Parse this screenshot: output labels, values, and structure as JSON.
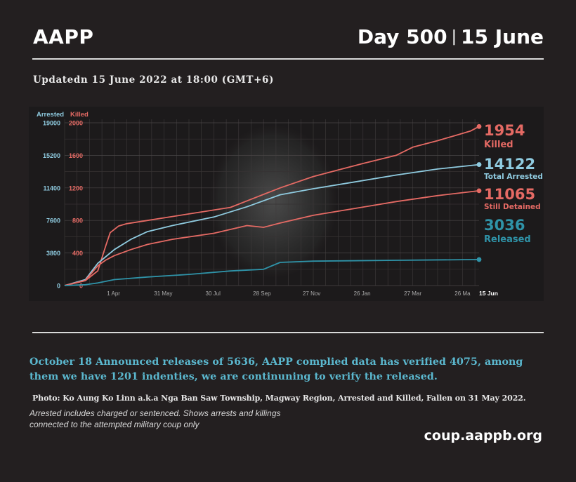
{
  "header": {
    "brand": "AAPP",
    "day_label": "Day 500",
    "separator": "|",
    "date_label": "15 June"
  },
  "updated": "Updatedn 15 June 2022 at 18:00 (GMT+6)",
  "chart_data": {
    "type": "line",
    "left_axis": {
      "label": "Arrested",
      "ticks": [
        0,
        3800,
        7600,
        11400,
        15200,
        19000
      ],
      "ylim": [
        0,
        19000
      ],
      "color": "#8fcbe0"
    },
    "right_axis": {
      "label": "Killed",
      "ticks": [
        0,
        400,
        800,
        1200,
        1600,
        2000
      ],
      "ylim": [
        0,
        2000
      ],
      "color": "#e56a64"
    },
    "x_ticks": [
      "1 Apr",
      "31 May",
      "30 Jul",
      "28 Sep",
      "27 Nov",
      "26 Jan",
      "27 Mar",
      "26 Ma",
      "15 Jun"
    ],
    "x_tick_days": [
      59,
      119,
      179,
      238,
      298,
      359,
      420,
      480,
      500
    ],
    "x_range_days": [
      0,
      500
    ],
    "grid": true,
    "series": [
      {
        "name": "Killed",
        "axis": "right",
        "color": "#e56a64",
        "x": [
          0,
          25,
          40,
          50,
          55,
          65,
          75,
          100,
          150,
          200,
          230,
          260,
          300,
          330,
          360,
          400,
          420,
          450,
          470,
          490,
          500
        ],
        "y": [
          0,
          60,
          180,
          500,
          650,
          730,
          760,
          800,
          880,
          960,
          1080,
          1200,
          1340,
          1420,
          1500,
          1600,
          1700,
          1780,
          1840,
          1900,
          1954
        ]
      },
      {
        "name": "Total Arrested",
        "axis": "left",
        "color": "#8fcbe0",
        "x": [
          0,
          25,
          40,
          50,
          60,
          80,
          100,
          130,
          180,
          220,
          260,
          300,
          350,
          400,
          450,
          500
        ],
        "y": [
          0,
          700,
          2600,
          3400,
          4200,
          5400,
          6300,
          7000,
          8000,
          9200,
          10600,
          11300,
          12100,
          12900,
          13600,
          14122
        ]
      },
      {
        "name": "Still Detained",
        "axis": "left",
        "color": "#e56a64",
        "x": [
          0,
          25,
          40,
          50,
          60,
          80,
          100,
          130,
          180,
          220,
          240,
          260,
          300,
          350,
          400,
          450,
          500
        ],
        "y": [
          0,
          600,
          2300,
          3000,
          3500,
          4200,
          4800,
          5400,
          6100,
          7000,
          6800,
          7300,
          8200,
          9000,
          9800,
          10500,
          11065
        ]
      },
      {
        "name": "Released",
        "axis": "left",
        "color": "#2f93a8",
        "x": [
          0,
          25,
          40,
          60,
          100,
          150,
          200,
          240,
          260,
          300,
          400,
          500
        ],
        "y": [
          0,
          100,
          300,
          700,
          1000,
          1300,
          1700,
          1900,
          2700,
          2850,
          2950,
          3036
        ]
      }
    ],
    "end_labels": [
      {
        "value": "1954",
        "label": "Killed",
        "color": "#e56a64"
      },
      {
        "value": "14122",
        "label": "Total Arrested",
        "color": "#8fcbe0"
      },
      {
        "value": "11065",
        "label": "Still Detained",
        "color": "#e56a64"
      },
      {
        "value": "3036",
        "label": "Released",
        "color": "#2f93a8"
      }
    ]
  },
  "notice": "October 18 Announced releases of 5636, AAPP complied data has verified 4075, among them we have 1201 indenties, we are continuning to verify the released.",
  "photo_caption": "Photo:  Ko Aung Ko Linn a.k.a Nga Ban Saw Township, Magway Region, Arrested and Killed, Fallen on 31 May 2022.",
  "footnote": "Arrested includes charged or sentenced. Shows arrests and killings connected to the attempted military coup only",
  "website": "coup.aappb.org",
  "colors": {
    "background": "#231f20",
    "killed": "#e56a64",
    "arrested": "#8fcbe0",
    "released": "#2f93a8"
  }
}
